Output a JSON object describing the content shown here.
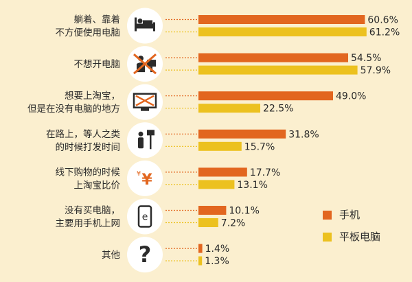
{
  "chart_data": {
    "type": "bar",
    "orientation": "horizontal",
    "categories": [
      [
        "躺着、靠着",
        "不方便使用电脑"
      ],
      [
        "不想开电脑"
      ],
      [
        "想要上淘宝，",
        "但是在没有电脑的地方"
      ],
      [
        "在路上，等人之类",
        "的时候打发时间"
      ],
      [
        "线下购物的时候",
        "上淘宝比价"
      ],
      [
        "没有买电脑，",
        "主要用手机上网"
      ],
      [
        "其他"
      ]
    ],
    "icons": [
      "person-in-bed-icon",
      "no-computer-icon",
      "crossed-monitor-icon",
      "person-at-bus-stop-icon",
      "yen-icon",
      "phone-browser-icon",
      "question-icon"
    ],
    "series": [
      {
        "name": "手机",
        "values": [
          60.6,
          54.5,
          49.0,
          31.8,
          17.7,
          10.1,
          1.4
        ],
        "labels": [
          "60.6%",
          "54.5%",
          "49.0%",
          "31.8%",
          "17.7%",
          "10.1%",
          "1.4%"
        ]
      },
      {
        "name": "平板电脑",
        "values": [
          61.2,
          57.9,
          22.5,
          15.7,
          13.1,
          7.2,
          1.3
        ],
        "labels": [
          "61.2%",
          "57.9%",
          "22.5%",
          "15.7%",
          "13.1%",
          "7.2%",
          "1.3%"
        ]
      }
    ],
    "xlim": [
      0,
      100
    ],
    "legend_position": "bottom-right"
  },
  "colors": {
    "series_1": "#e2661f",
    "series_2": "#ecc11f",
    "icon_circle": "#ffffff",
    "icon_ink": "#2b2b2b",
    "icon_accent": "#e2661f"
  }
}
